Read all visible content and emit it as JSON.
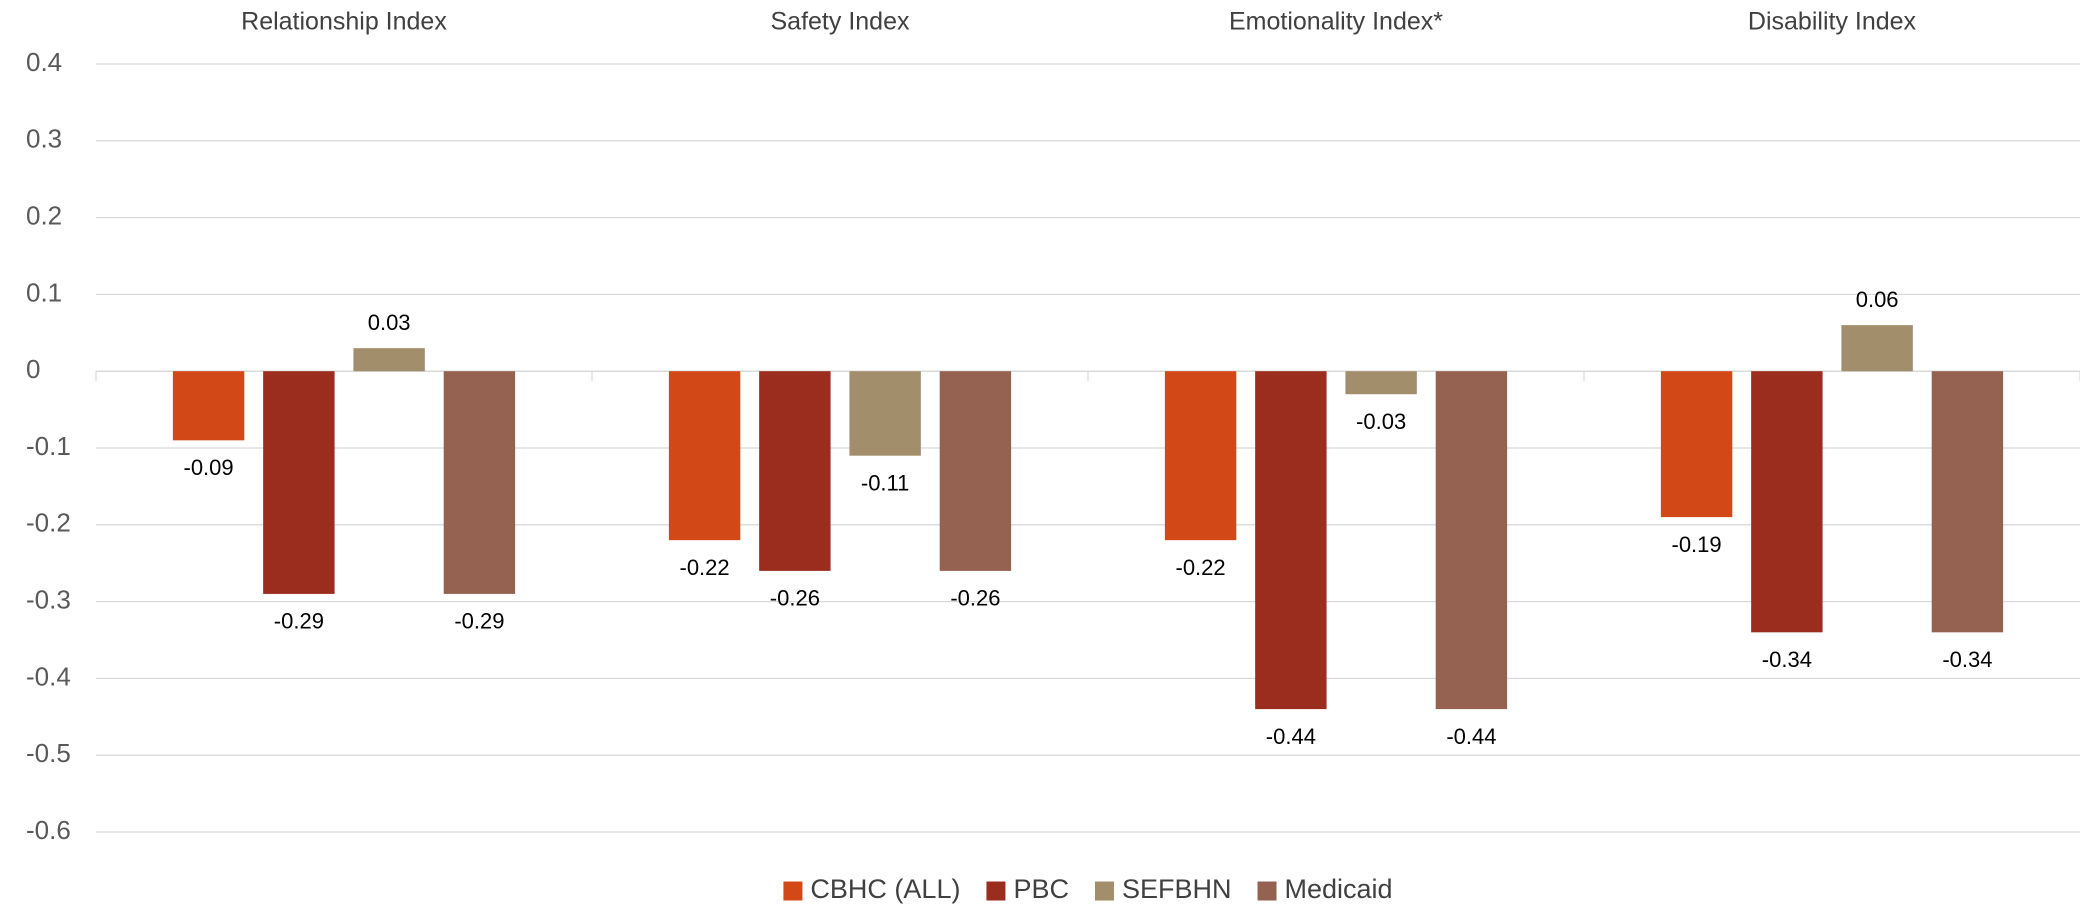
{
  "chart_data": {
    "type": "bar",
    "categories": [
      "Relationship Index",
      "Safety Index",
      "Emotionality Index*",
      "Disability Index"
    ],
    "series": [
      {
        "name": "CBHC (ALL)",
        "color": "#d34817",
        "values": [
          -0.09,
          -0.22,
          -0.22,
          -0.19
        ]
      },
      {
        "name": "PBC",
        "color": "#9b2d1f",
        "values": [
          -0.29,
          -0.26,
          -0.44,
          -0.34
        ]
      },
      {
        "name": "SEFBHN",
        "color": "#a28e6a",
        "values": [
          0.03,
          -0.11,
          -0.03,
          0.06
        ]
      },
      {
        "name": "Medicaid",
        "color": "#956251",
        "values": [
          -0.29,
          -0.26,
          -0.44,
          -0.34
        ]
      }
    ],
    "ylim": [
      -0.6,
      0.4
    ],
    "yticks": [
      -0.6,
      -0.5,
      -0.4,
      -0.3,
      -0.2,
      -0.1,
      0,
      0.1,
      0.2,
      0.3,
      0.4
    ],
    "grid": true,
    "legend": "bottom"
  }
}
